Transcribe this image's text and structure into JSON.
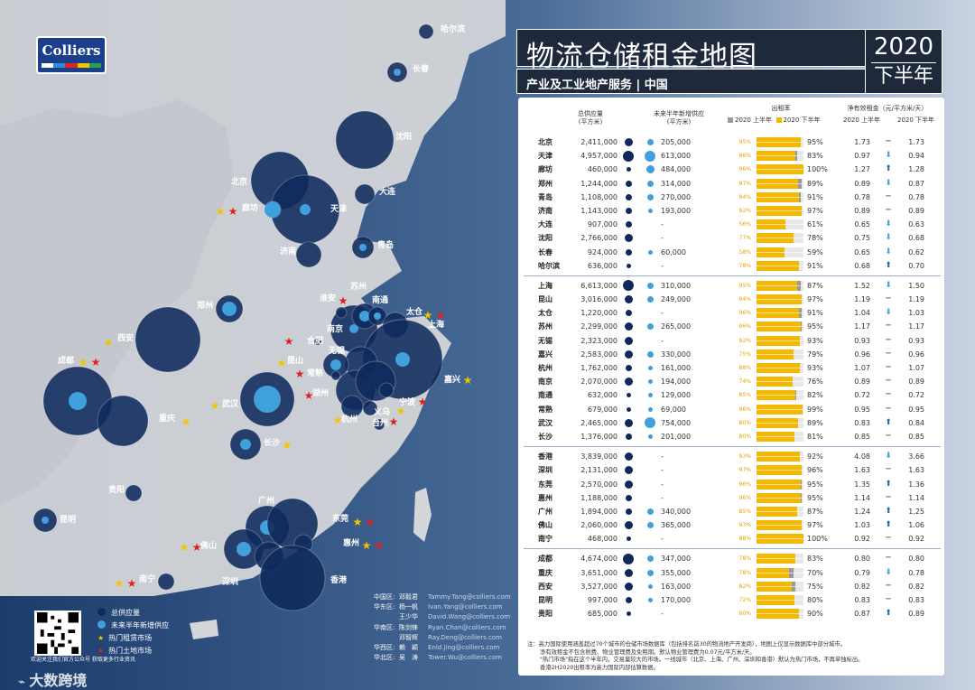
{
  "brand": {
    "logo_text": "Colliers"
  },
  "header": {
    "title": "物流仓储租金地图",
    "subtitle": "产业及工业地产服务 | 中国",
    "year": "2020",
    "half": "下半年"
  },
  "table": {
    "col_stock": "总供应量",
    "col_stock_unit": "(平方米)",
    "col_future": "未来半年新增供应",
    "col_future_unit": "(平方米)",
    "col_occ": "出租率",
    "col_rent": "净有效租金（元/平方米/天）",
    "legend_h1": "2020 上半年",
    "legend_h2": "2020 下半年",
    "rent_h1": "2020 上半年",
    "rent_h2": "2020 下半年",
    "groups": [
      {
        "rows": [
          {
            "city": "北京",
            "stock": "2,411,000",
            "s": 2,
            "fut": "205,000",
            "f": 1,
            "o1": "95%",
            "o2": "95%",
            "v1": 95,
            "v2": 95,
            "r1": "1.73",
            "r2": "1.73",
            "t": "flat"
          },
          {
            "city": "天津",
            "stock": "4,957,000",
            "s": 3,
            "fut": "613,000",
            "f": 3,
            "o1": "86%",
            "o2": "83%",
            "v1": 86,
            "v2": 83,
            "r1": "0.97",
            "r2": "0.94",
            "t": "down"
          },
          {
            "city": "廊坊",
            "stock": "460,000",
            "s": 0,
            "fut": "484,000",
            "f": 2,
            "o1": "96%",
            "o2": "100%",
            "v1": 96,
            "v2": 100,
            "r1": "1.27",
            "r2": "1.28",
            "t": "up"
          },
          {
            "city": "郑州",
            "stock": "1,244,000",
            "s": 1,
            "fut": "314,000",
            "f": 1,
            "o1": "97%",
            "o2": "89%",
            "v1": 97,
            "v2": 89,
            "r1": "0.89",
            "r2": "0.87",
            "t": "down"
          },
          {
            "city": "青岛",
            "stock": "1,108,000",
            "s": 1,
            "fut": "270,000",
            "f": 1,
            "o1": "94%",
            "o2": "91%",
            "v1": 94,
            "v2": 91,
            "r1": "0.78",
            "r2": "0.78",
            "t": "flat"
          },
          {
            "city": "济南",
            "stock": "1,143,000",
            "s": 1,
            "fut": "193,000",
            "f": 0,
            "o1": "92%",
            "o2": "97%",
            "v1": 92,
            "v2": 97,
            "r1": "0.89",
            "r2": "0.89",
            "t": "flat"
          },
          {
            "city": "大连",
            "stock": "907,000",
            "s": 1,
            "fut": "-",
            "f": -1,
            "o1": "56%",
            "o2": "61%",
            "v1": 56,
            "v2": 61,
            "r1": "0.65",
            "r2": "0.63",
            "t": "down"
          },
          {
            "city": "沈阳",
            "stock": "2,766,000",
            "s": 2,
            "fut": "-",
            "f": -1,
            "o1": "77%",
            "o2": "78%",
            "v1": 77,
            "v2": 78,
            "r1": "0.75",
            "r2": "0.68",
            "t": "down"
          },
          {
            "city": "长春",
            "stock": "924,000",
            "s": 1,
            "fut": "60,000",
            "f": 0,
            "o1": "58%",
            "o2": "59%",
            "v1": 58,
            "v2": 59,
            "r1": "0.65",
            "r2": "0.62",
            "t": "down"
          },
          {
            "city": "哈尔滨",
            "stock": "636,000",
            "s": 0,
            "fut": "-",
            "f": -1,
            "o1": "78%",
            "o2": "91%",
            "v1": 78,
            "v2": 91,
            "r1": "0.68",
            "r2": "0.70",
            "t": "up"
          }
        ]
      },
      {
        "rows": [
          {
            "city": "上海",
            "stock": "6,613,000",
            "s": 3,
            "fut": "310,000",
            "f": 1,
            "o1": "95%",
            "o2": "87%",
            "v1": 95,
            "v2": 87,
            "r1": "1.52",
            "r2": "1.50",
            "t": "down"
          },
          {
            "city": "昆山",
            "stock": "3,016,000",
            "s": 2,
            "fut": "249,000",
            "f": 1,
            "o1": "94%",
            "o2": "97%",
            "v1": 94,
            "v2": 97,
            "r1": "1.19",
            "r2": "1.19",
            "t": "flat"
          },
          {
            "city": "太仓",
            "stock": "1,220,000",
            "s": 1,
            "fut": "-",
            "f": -1,
            "o1": "96%",
            "o2": "91%",
            "v1": 96,
            "v2": 91,
            "r1": "1.04",
            "r2": "1.03",
            "t": "down"
          },
          {
            "city": "苏州",
            "stock": "2,299,000",
            "s": 2,
            "fut": "265,000",
            "f": 1,
            "o1": "96%",
            "o2": "95%",
            "v1": 96,
            "v2": 95,
            "r1": "1.17",
            "r2": "1.17",
            "t": "flat"
          },
          {
            "city": "无锡",
            "stock": "2,323,000",
            "s": 2,
            "fut": "-",
            "f": -1,
            "o1": "92%",
            "o2": "93%",
            "v1": 92,
            "v2": 93,
            "r1": "0.93",
            "r2": "0.93",
            "t": "flat"
          },
          {
            "city": "嘉兴",
            "stock": "2,583,000",
            "s": 2,
            "fut": "330,000",
            "f": 1,
            "o1": "75%",
            "o2": "79%",
            "v1": 75,
            "v2": 79,
            "r1": "0.96",
            "r2": "0.96",
            "t": "flat"
          },
          {
            "city": "杭州",
            "stock": "1,762,000",
            "s": 1,
            "fut": "161,000",
            "f": 0,
            "o1": "88%",
            "o2": "93%",
            "v1": 88,
            "v2": 93,
            "r1": "1.07",
            "r2": "1.07",
            "t": "flat"
          },
          {
            "city": "南京",
            "stock": "2,070,000",
            "s": 2,
            "fut": "194,000",
            "f": 0,
            "o1": "74%",
            "o2": "76%",
            "v1": 74,
            "v2": 76,
            "r1": "0.89",
            "r2": "0.89",
            "t": "flat"
          },
          {
            "city": "南通",
            "stock": "632,000",
            "s": 0,
            "fut": "129,000",
            "f": 0,
            "o1": "85%",
            "o2": "82%",
            "v1": 85,
            "v2": 82,
            "r1": "0.72",
            "r2": "0.72",
            "t": "flat"
          },
          {
            "city": "常熟",
            "stock": "679,000",
            "s": 0,
            "fut": "69,000",
            "f": 0,
            "o1": "96%",
            "o2": "99%",
            "v1": 96,
            "v2": 99,
            "r1": "0.95",
            "r2": "0.95",
            "t": "flat"
          },
          {
            "city": "武汉",
            "stock": "2,465,000",
            "s": 2,
            "fut": "754,000",
            "f": 3,
            "o1": "80%",
            "o2": "89%",
            "v1": 80,
            "v2": 89,
            "r1": "0.83",
            "r2": "0.84",
            "t": "up"
          },
          {
            "city": "长沙",
            "stock": "1,376,000",
            "s": 1,
            "fut": "201,000",
            "f": 0,
            "o1": "80%",
            "o2": "81%",
            "v1": 80,
            "v2": 81,
            "r1": "0.85",
            "r2": "0.85",
            "t": "flat"
          }
        ]
      },
      {
        "rows": [
          {
            "city": "香港",
            "stock": "3,839,000",
            "s": 2,
            "fut": "-",
            "f": -1,
            "o1": "93%",
            "o2": "92%",
            "v1": 93,
            "v2": 92,
            "r1": "4.08",
            "r2": "3.66",
            "t": "down"
          },
          {
            "city": "深圳",
            "stock": "2,131,000",
            "s": 2,
            "fut": "-",
            "f": -1,
            "o1": "97%",
            "o2": "96%",
            "v1": 97,
            "v2": 96,
            "r1": "1.63",
            "r2": "1.63",
            "t": "flat"
          },
          {
            "city": "东莞",
            "stock": "2,570,000",
            "s": 2,
            "fut": "-",
            "f": -1,
            "o1": "96%",
            "o2": "95%",
            "v1": 96,
            "v2": 95,
            "r1": "1.35",
            "r2": "1.36",
            "t": "up"
          },
          {
            "city": "惠州",
            "stock": "1,188,000",
            "s": 1,
            "fut": "-",
            "f": -1,
            "o1": "96%",
            "o2": "95%",
            "v1": 96,
            "v2": 95,
            "r1": "1.14",
            "r2": "1.14",
            "t": "flat"
          },
          {
            "city": "广州",
            "stock": "1,894,000",
            "s": 1,
            "fut": "340,000",
            "f": 1,
            "o1": "85%",
            "o2": "87%",
            "v1": 85,
            "v2": 87,
            "r1": "1.24",
            "r2": "1.25",
            "t": "up"
          },
          {
            "city": "佛山",
            "stock": "2,060,000",
            "s": 2,
            "fut": "365,000",
            "f": 1,
            "o1": "93%",
            "o2": "97%",
            "v1": 93,
            "v2": 97,
            "r1": "1.03",
            "r2": "1.06",
            "t": "up"
          },
          {
            "city": "南宁",
            "stock": "468,000",
            "s": 0,
            "fut": "-",
            "f": -1,
            "o1": "88%",
            "o2": "100%",
            "v1": 88,
            "v2": 100,
            "r1": "0.92",
            "r2": "0.92",
            "t": "flat"
          }
        ]
      },
      {
        "rows": [
          {
            "city": "成都",
            "stock": "4,674,000",
            "s": 3,
            "fut": "347,000",
            "f": 1,
            "o1": "78%",
            "o2": "83%",
            "v1": 78,
            "v2": 83,
            "r1": "0.80",
            "r2": "0.80",
            "t": "flat"
          },
          {
            "city": "重庆",
            "stock": "3,651,000",
            "s": 2,
            "fut": "355,000",
            "f": 1,
            "o1": "78%",
            "o2": "70%",
            "v1": 78,
            "v2": 70,
            "r1": "0.79",
            "r2": "0.78",
            "t": "down"
          },
          {
            "city": "西安",
            "stock": "3,527,000",
            "s": 2,
            "fut": "163,000",
            "f": 0,
            "o1": "82%",
            "o2": "75%",
            "v1": 82,
            "v2": 75,
            "r1": "0.82",
            "r2": "0.82",
            "t": "flat"
          },
          {
            "city": "昆明",
            "stock": "997,000",
            "s": 1,
            "fut": "170,000",
            "f": 0,
            "o1": "72%",
            "o2": "80%",
            "v1": 72,
            "v2": 80,
            "r1": "0.83",
            "r2": "0.83",
            "t": "flat"
          },
          {
            "city": "贵阳",
            "stock": "685,000",
            "s": 0,
            "fut": "-",
            "f": -1,
            "o1": "90%",
            "o2": "90%",
            "v1": 90,
            "v2": 90,
            "r1": "0.87",
            "r2": "0.89",
            "t": "up"
          }
        ]
      }
    ]
  },
  "notes": [
    "注：高力国际使用涵盖超过70个城市的仓储市场数据库（包括排名前30的物流地产开发商），地图上仅显示数据库中部分城市。",
    "净有效租金不包含税费、物业管理费及免租期。默认物业管理费为0.07元/平方米/天。",
    "\"热门市场\"指在这个半年内，交易量较大的市场。一线城市（北京、上海、广州、深圳和香港）默认为热门市场，不再单独标出。",
    "香港2H2020出租率为高力国际内部估算数据。"
  ],
  "contacts": [
    {
      "region": "中国区:",
      "name": "邓毅君",
      "email": "Tammy.Tang@colliers.com"
    },
    {
      "region": "华东区:",
      "name": "杨一帆",
      "email": "Ivan.Yang@colliers.com"
    },
    {
      "region": "",
      "name": "王少华",
      "email": "David.Wang@colliers.com"
    },
    {
      "region": "华南区:",
      "name": "陈剑锋",
      "email": "Ryan.Chan@colliers.com"
    },
    {
      "region": "",
      "name": "邓智辉",
      "email": "Ray.Deng@colliers.com"
    },
    {
      "region": "华西区:",
      "name": "赖　颖",
      "email": "Enid.Jing@colliers.com"
    },
    {
      "region": "华北区:",
      "name": "吴　涛",
      "email": "Tower.Wu@colliers.com"
    }
  ],
  "map_legend": {
    "stock": "总供应量",
    "future": "未来半年新增供应",
    "hot_rent": "热门租赁市场",
    "hot_land": "热门土地市场"
  },
  "qr_caption": "欢迎关注我们官方公众号 获取更多行业资讯",
  "watermark": "大数跨境",
  "colors": {
    "stock": "#10295a",
    "future": "#3fa0dc",
    "occ_h1": "#9a9a9a",
    "occ_h2": "#f3b800",
    "star_rent": "#f3c400",
    "star_land": "#e02020"
  },
  "map_cities": [
    {
      "name": "哈尔滨",
      "x": 0,
      "y": 0
    },
    {
      "name": "长春"
    },
    {
      "name": "沈阳"
    },
    {
      "name": "大连"
    },
    {
      "name": "北京"
    },
    {
      "name": "天津"
    },
    {
      "name": "廊坊"
    },
    {
      "name": "济南"
    },
    {
      "name": "青岛"
    },
    {
      "name": "郑州"
    },
    {
      "name": "西安"
    },
    {
      "name": "成都"
    },
    {
      "name": "重庆"
    },
    {
      "name": "武汉"
    },
    {
      "name": "长沙"
    },
    {
      "name": "贵阳"
    },
    {
      "name": "昆明"
    },
    {
      "name": "南宁"
    },
    {
      "name": "广州"
    },
    {
      "name": "佛山"
    },
    {
      "name": "东莞"
    },
    {
      "name": "惠州"
    },
    {
      "name": "深圳"
    },
    {
      "name": "香港"
    },
    {
      "name": "南京"
    },
    {
      "name": "苏州"
    },
    {
      "name": "南通"
    },
    {
      "name": "淮安"
    },
    {
      "name": "太仓"
    },
    {
      "name": "上海"
    },
    {
      "name": "合肥"
    },
    {
      "name": "无锡"
    },
    {
      "name": "昆山"
    },
    {
      "name": "常熟"
    },
    {
      "name": "湖州"
    },
    {
      "name": "嘉兴"
    },
    {
      "name": "杭州"
    },
    {
      "name": "宁波"
    },
    {
      "name": "义乌"
    },
    {
      "name": "台州"
    }
  ]
}
